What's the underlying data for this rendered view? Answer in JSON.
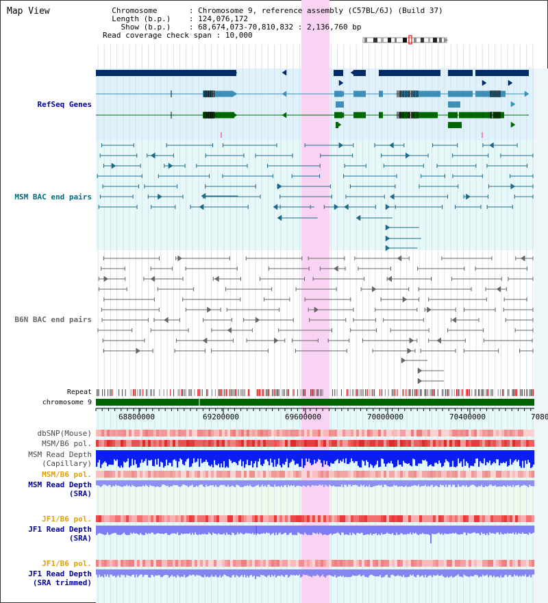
{
  "title": "Map View",
  "info": {
    "chromosome_label": "Chromosome",
    "chromosome_value": "Chromosome 9, reference assembly (C57BL/6J) (Build 37)",
    "length_label": "Length (b.p.)",
    "length_value": "124,076,172",
    "show_label": "Show (b.p.)",
    "show_value": "68,674,073-70,810,832 : 2,136,760 bp",
    "span_label": "Read coverage check span",
    "span_value": "10,000"
  },
  "tracks": {
    "refseq": "RefSeq Genes",
    "msm_bac": "MSM BAC end pairs",
    "b6n_bac": "B6N BAC end pairs",
    "repeat": "Repeat",
    "chromosome": "chromosome 9",
    "dbsnp": "dbSNP(Mouse)",
    "msm_b6_pol_1": "MSM/B6 pol.",
    "msm_read_depth_cap_1": "MSM Read Depth",
    "msm_read_depth_cap_2": "(Capillary)",
    "msm_b6_pol_2": "MSM/B6 pol.",
    "msm_read_depth_sra_1": "MSM Read Depth",
    "msm_read_depth_sra_2": "(SRA)",
    "jf1_b6_pol_1": "JF1/B6 pol.",
    "jf1_read_depth_sra_1": "JF1 Read Depth",
    "jf1_read_depth_sra_2": "(SRA)",
    "jf1_b6_pol_2": "JF1/B6 pol.",
    "jf1_read_depth_trim_1": "JF1 Read Depth",
    "jf1_read_depth_trim_2": "(SRA trimmed)"
  },
  "ruler_labels": [
    "68800000",
    "69200000",
    "69600000",
    "70000000",
    "70400000",
    "7080"
  ],
  "colors": {
    "navy": "#002b66",
    "steel": "#3d8fb8",
    "green": "#006600",
    "teal": "#1d6a87",
    "grey": "#666666",
    "highlight": "#f9d3f2",
    "label_navy": "#000099",
    "label_teal": "#006a80",
    "label_orange": "#e0a000"
  }
}
